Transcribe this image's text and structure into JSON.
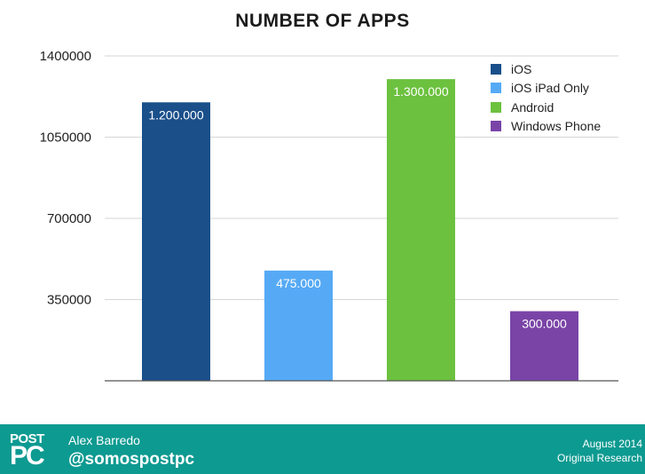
{
  "chart_data": {
    "type": "bar",
    "title": "NUMBER OF APPS",
    "categories": [
      "iOS",
      "iOS iPad Only",
      "Android",
      "Windows Phone"
    ],
    "values": [
      1200000,
      475000,
      1300000,
      300000
    ],
    "value_labels": [
      "1.200.000",
      "475.000",
      "1.300.000",
      "300.000"
    ],
    "colors": [
      "#1a4f8a",
      "#56aaf5",
      "#6cc13e",
      "#7a44a7"
    ],
    "ylim": [
      0,
      1400000
    ],
    "yticks": [
      350000,
      700000,
      1050000,
      1400000
    ],
    "ytick_labels": [
      "350000",
      "700000",
      "1050000",
      "1400000"
    ],
    "xlabel": "",
    "ylabel": "",
    "grid": true,
    "legend_position": "top-right"
  },
  "footer": {
    "logo_top": "POST",
    "logo_bottom": "PC",
    "author": "Alex Barredo",
    "handle": "@somospostpc",
    "date": "August 2014",
    "source": "Original Research",
    "background_color": "#0d9a91"
  }
}
